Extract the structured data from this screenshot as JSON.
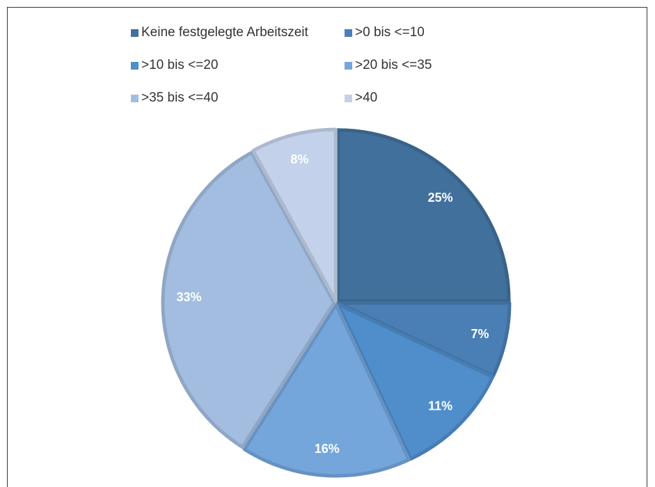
{
  "chart_data": {
    "type": "pie",
    "categories": [
      "Keine festgelegte Arbeitszeit",
      ">0 bis <=10",
      ">10 bis <=20",
      ">20 bis <=35",
      ">35 bis <=40",
      ">40"
    ],
    "values": [
      25,
      7,
      11,
      16,
      33,
      8
    ],
    "value_labels": [
      "25%",
      "7%",
      "11%",
      "16%",
      "33%",
      "8%"
    ],
    "colors": [
      "#41709c",
      "#4a7fb5",
      "#4f8ecb",
      "#74a6dc",
      "#a3bde0",
      "#c3d2ea"
    ]
  }
}
